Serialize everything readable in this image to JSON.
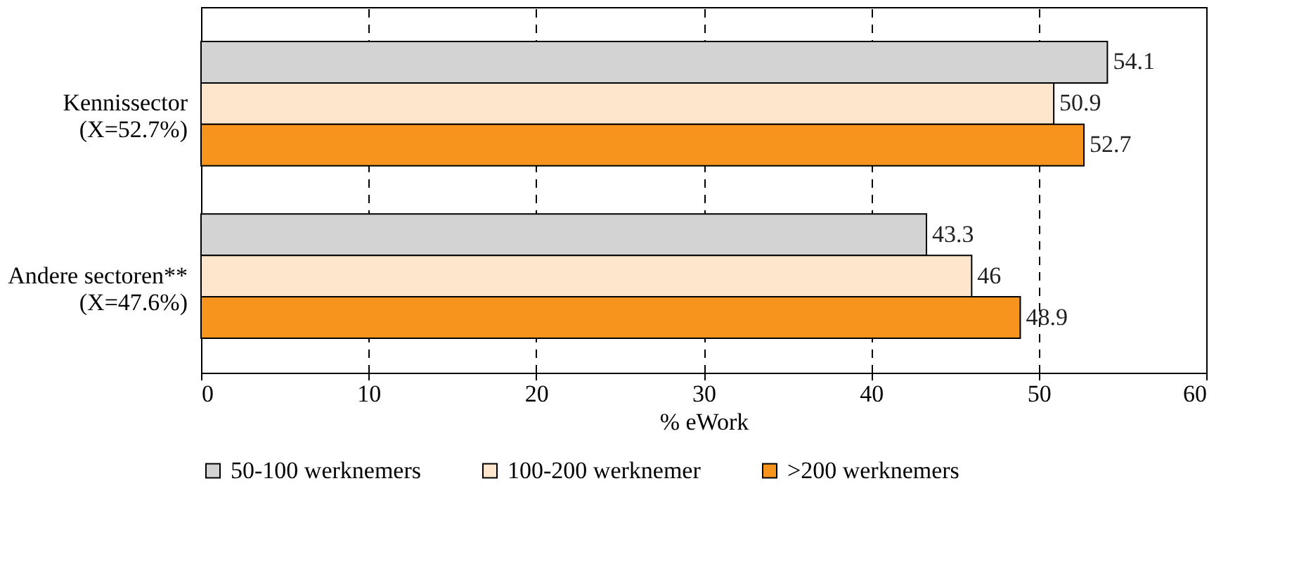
{
  "chart_data": {
    "type": "bar",
    "orientation": "horizontal",
    "xlabel": "% eWork",
    "categories": [
      "Kennissector\n(X=52.7%)",
      "Andere sectoren**\n(X=47.6%)"
    ],
    "series": [
      {
        "name": "50-100 werknemers",
        "color": "#d3d3d3",
        "values": [
          54.1,
          43.3
        ]
      },
      {
        "name": "100-200 werknemer",
        "color": "#fde6cb",
        "values": [
          50.9,
          46
        ]
      },
      {
        "name": ">200 werknemers",
        "color": "#f7941d",
        "values": [
          52.7,
          48.9
        ]
      }
    ],
    "xlim": [
      0,
      60
    ],
    "xticks": [
      0,
      10,
      20,
      30,
      40,
      50,
      60
    ],
    "grid": "x",
    "legend": "bottom",
    "data_labels": true
  }
}
